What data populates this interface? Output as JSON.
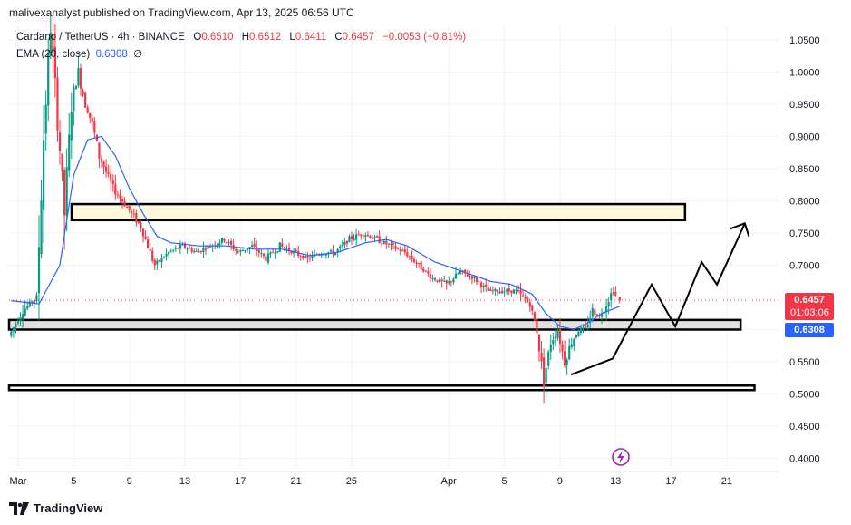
{
  "header": {
    "publisher": "malivexanalyst published on TradingView.com, Apr 13, 2025 06:56 UTC"
  },
  "legend": {
    "symbol": "Cardano / TetherUS · 4h · BINANCE",
    "open_key": "O",
    "open": "0.6510",
    "high_key": "H",
    "high": "0.6512",
    "low_key": "L",
    "low": "0.6411",
    "close_key": "C",
    "close": "0.6457",
    "change": "−0.0053 (−0.81%)",
    "ema_label": "EMA (20, close)",
    "ema_value": "0.6308",
    "ema_extra": "∅"
  },
  "price_tags": {
    "last_price": "0.6457",
    "countdown": "01:03:06",
    "ema_price": "0.6308"
  },
  "footer": {
    "brand": "TradingView"
  },
  "colors": {
    "up": "#089981",
    "down": "#f23645",
    "ema": "#2962ff",
    "resistance_zone": "#fff8dc",
    "support_zone": "#e0e0e0"
  },
  "chart_data": {
    "type": "candlestick",
    "y_ticks": [
      "1.0500",
      "1.0000",
      "0.9500",
      "0.9000",
      "0.8500",
      "0.8000",
      "0.7500",
      "0.7000",
      "0.6500",
      "0.6000",
      "0.5500",
      "0.5000",
      "0.4500",
      "0.4000"
    ],
    "ylim": [
      0.39,
      1.07
    ],
    "x_ticks": [
      "Mar",
      "5",
      "9",
      "13",
      "17",
      "21",
      "25",
      "Apr",
      "5",
      "9",
      "13",
      "17",
      "21"
    ],
    "x_tick_days": [
      1,
      5,
      9,
      13,
      17,
      21,
      25,
      32,
      36,
      40,
      44,
      48,
      52
    ],
    "series_ema": {
      "name": "EMA (20, close)",
      "points": [
        [
          0.5,
          0.645
        ],
        [
          2.5,
          0.64
        ],
        [
          4,
          0.7
        ],
        [
          5,
          0.84
        ],
        [
          6,
          0.895
        ],
        [
          7,
          0.9
        ],
        [
          8,
          0.87
        ],
        [
          9,
          0.82
        ],
        [
          10,
          0.78
        ],
        [
          11,
          0.745
        ],
        [
          12,
          0.735
        ],
        [
          14,
          0.73
        ],
        [
          16,
          0.73
        ],
        [
          18,
          0.725
        ],
        [
          20,
          0.725
        ],
        [
          22,
          0.715
        ],
        [
          24,
          0.72
        ],
        [
          26,
          0.735
        ],
        [
          27.5,
          0.74
        ],
        [
          29,
          0.73
        ],
        [
          31,
          0.705
        ],
        [
          33,
          0.69
        ],
        [
          35,
          0.675
        ],
        [
          36.5,
          0.67
        ],
        [
          38,
          0.655
        ],
        [
          39,
          0.625
        ],
        [
          40,
          0.605
        ],
        [
          41,
          0.6
        ],
        [
          42,
          0.61
        ],
        [
          43,
          0.625
        ],
        [
          44.3,
          0.636
        ]
      ]
    },
    "candles_summary": {
      "path": [
        [
          0.5,
          0.59
        ],
        [
          1.5,
          0.63
        ],
        [
          2.5,
          0.65
        ],
        [
          3,
          0.9
        ],
        [
          3.5,
          1.07
        ],
        [
          4,
          0.93
        ],
        [
          4.5,
          0.78
        ],
        [
          5,
          0.95
        ],
        [
          5.5,
          1.0
        ],
        [
          6,
          0.95
        ],
        [
          6.5,
          0.92
        ],
        [
          7,
          0.87
        ],
        [
          8,
          0.82
        ],
        [
          9,
          0.79
        ],
        [
          10,
          0.76
        ],
        [
          11,
          0.7
        ],
        [
          12,
          0.72
        ],
        [
          13,
          0.73
        ],
        [
          14,
          0.72
        ],
        [
          15,
          0.73
        ],
        [
          16,
          0.74
        ],
        [
          17,
          0.72
        ],
        [
          18,
          0.73
        ],
        [
          19,
          0.71
        ],
        [
          20,
          0.73
        ],
        [
          21,
          0.72
        ],
        [
          22,
          0.71
        ],
        [
          23,
          0.72
        ],
        [
          24,
          0.72
        ],
        [
          25,
          0.74
        ],
        [
          26,
          0.75
        ],
        [
          27,
          0.74
        ],
        [
          28,
          0.73
        ],
        [
          29,
          0.72
        ],
        [
          30,
          0.7
        ],
        [
          31,
          0.68
        ],
        [
          32,
          0.67
        ],
        [
          33,
          0.69
        ],
        [
          34,
          0.68
        ],
        [
          35,
          0.66
        ],
        [
          36,
          0.66
        ],
        [
          37,
          0.66
        ],
        [
          38,
          0.64
        ],
        [
          38.5,
          0.6
        ],
        [
          39,
          0.52
        ],
        [
          39.5,
          0.58
        ],
        [
          40,
          0.6
        ],
        [
          40.5,
          0.55
        ],
        [
          41,
          0.58
        ],
        [
          41.5,
          0.6
        ],
        [
          42,
          0.6
        ],
        [
          42.5,
          0.63
        ],
        [
          43,
          0.62
        ],
        [
          43.5,
          0.64
        ],
        [
          44,
          0.662
        ],
        [
          44.3,
          0.646
        ]
      ],
      "last": {
        "open": 0.651,
        "high": 0.6512,
        "low": 0.6411,
        "close": 0.6457
      }
    },
    "zones": [
      {
        "name": "resistance",
        "y_low": 0.77,
        "y_high": 0.795,
        "x_start": 4,
        "x_end": 49
      },
      {
        "name": "support",
        "y_low": 0.6,
        "y_high": 0.615,
        "x_start": 0,
        "x_end": 53
      },
      {
        "name": "lower-support",
        "y_low": 0.506,
        "y_high": 0.513,
        "x_start": 0,
        "x_end": 54
      }
    ],
    "projection": [
      [
        40.8,
        0.53
      ],
      [
        43.8,
        0.555
      ],
      [
        46.6,
        0.67
      ],
      [
        48.3,
        0.605
      ],
      [
        50.2,
        0.705
      ],
      [
        51.3,
        0.67
      ],
      [
        53.3,
        0.765
      ],
      [
        53.6,
        0.745
      ]
    ],
    "last_price_line": 0.6457
  }
}
